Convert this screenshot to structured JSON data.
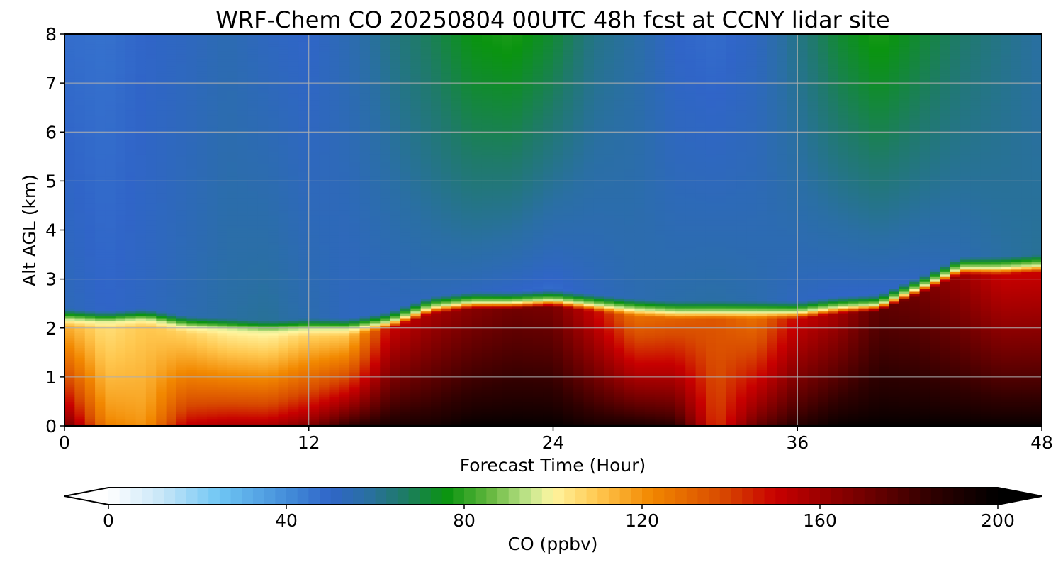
{
  "chart_data": {
    "type": "heatmap",
    "title": "WRF-Chem CO  20250804 00UTC 48h fcst at CCNY lidar site",
    "xlabel": "Forecast Time (Hour)",
    "ylabel": "Alt AGL (km)",
    "xlim": [
      0,
      48
    ],
    "ylim": [
      0,
      8
    ],
    "x_ticks": [
      0,
      12,
      24,
      36,
      48
    ],
    "y_ticks": [
      0,
      1,
      2,
      3,
      4,
      5,
      6,
      7,
      8
    ],
    "grid": true,
    "colorbar": {
      "label": "CO  (ppbv)",
      "range": [
        0,
        200
      ],
      "ticks": [
        0,
        40,
        80,
        120,
        160,
        200
      ],
      "extend": "both",
      "orientation": "horizontal",
      "stops": [
        {
          "v": 0,
          "color": "#ffffff"
        },
        {
          "v": 12,
          "color": "#c8e6f8"
        },
        {
          "v": 25,
          "color": "#6ec6f4"
        },
        {
          "v": 42,
          "color": "#3f86d6"
        },
        {
          "v": 50,
          "color": "#3065c8"
        },
        {
          "v": 58,
          "color": "#2a6fa4"
        },
        {
          "v": 66,
          "color": "#1f7a6a"
        },
        {
          "v": 76,
          "color": "#0a9410"
        },
        {
          "v": 86,
          "color": "#66b840"
        },
        {
          "v": 95,
          "color": "#c8e890"
        },
        {
          "v": 100,
          "color": "#fff5a0"
        },
        {
          "v": 110,
          "color": "#ffc850"
        },
        {
          "v": 122,
          "color": "#f28800"
        },
        {
          "v": 138,
          "color": "#d84a00"
        },
        {
          "v": 150,
          "color": "#c80000"
        },
        {
          "v": 168,
          "color": "#7a0000"
        },
        {
          "v": 185,
          "color": "#300000"
        },
        {
          "v": 200,
          "color": "#000000"
        }
      ]
    },
    "profile_hours": [
      0,
      2,
      4,
      6,
      8,
      10,
      12,
      14,
      16,
      18,
      20,
      22,
      24,
      26,
      28,
      30,
      32,
      34,
      36,
      38,
      40,
      42,
      44,
      46,
      48
    ],
    "profile_heights_km": [
      0,
      0.25,
      0.5,
      0.75,
      1.0,
      1.25,
      1.5,
      1.75,
      2.0,
      2.25,
      2.5,
      3.0,
      3.5,
      4.0,
      4.5,
      5.0,
      5.5,
      6.0,
      6.5,
      7.0,
      7.5,
      8.0
    ],
    "boundary_layer_top_km": [
      2.05,
      2.0,
      2.05,
      1.9,
      1.85,
      1.8,
      1.85,
      1.85,
      2.0,
      2.3,
      2.4,
      2.4,
      2.45,
      2.35,
      2.25,
      2.2,
      2.2,
      2.2,
      2.2,
      2.3,
      2.35,
      2.7,
      3.1,
      3.1,
      3.15
    ],
    "bl_top_values_ppbv": [
      115,
      105,
      110,
      108,
      103,
      102,
      108,
      110,
      150,
      158,
      165,
      170,
      168,
      150,
      128,
      132,
      135,
      128,
      150,
      158,
      175,
      170,
      160,
      150,
      150
    ],
    "bl_bottom_values_ppbv": [
      175,
      125,
      120,
      155,
      160,
      160,
      170,
      190,
      195,
      195,
      200,
      200,
      200,
      195,
      195,
      190,
      140,
      175,
      190,
      200,
      200,
      200,
      200,
      200,
      200
    ],
    "free_trop_low_values_ppbv": [
      54,
      50,
      52,
      55,
      58,
      60,
      56,
      52,
      52,
      53,
      52,
      50,
      48,
      52,
      55,
      57,
      58,
      56,
      52,
      50,
      50,
      52,
      55,
      58,
      60
    ],
    "upper_values_ppbv": [
      48,
      47,
      50,
      52,
      55,
      52,
      50,
      55,
      62,
      68,
      76,
      78,
      72,
      62,
      58,
      50,
      48,
      52,
      62,
      72,
      78,
      72,
      66,
      62,
      58
    ]
  }
}
